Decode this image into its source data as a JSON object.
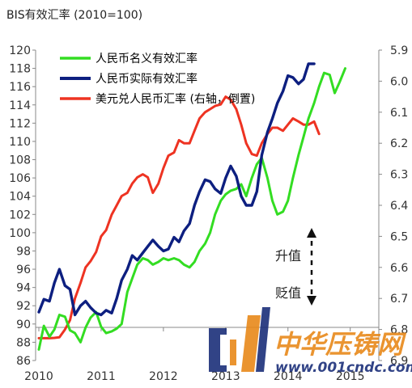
{
  "chart_data": {
    "type": "line",
    "title": "BIS有效汇率 (2010=100)",
    "x_ticks": [
      "2010",
      "2011",
      "2012",
      "2013",
      "2014",
      "2015"
    ],
    "y_left": {
      "min": 86,
      "max": 120,
      "ticks": [
        86,
        88,
        90,
        92,
        94,
        96,
        98,
        100,
        102,
        104,
        106,
        108,
        110,
        112,
        114,
        116,
        118,
        120
      ]
    },
    "y_right": {
      "min": 5.9,
      "max": 6.9,
      "inverted": true,
      "ticks": [
        "5.9",
        "6.0",
        "6.1",
        "6.2",
        "6.3",
        "6.4",
        "6.5",
        "6.6",
        "6.7",
        "6.8",
        "6.9"
      ]
    },
    "legend_placement": "top-left",
    "series": [
      {
        "name": "人民币名义有效汇率",
        "axis": "left",
        "color": "#33dd22",
        "points": [
          [
            2010.0,
            87.2
          ],
          [
            2010.08,
            89.8
          ],
          [
            2010.17,
            88.6
          ],
          [
            2010.25,
            89.4
          ],
          [
            2010.33,
            91.0
          ],
          [
            2010.42,
            90.8
          ],
          [
            2010.5,
            89.3
          ],
          [
            2010.58,
            89.0
          ],
          [
            2010.67,
            88.0
          ],
          [
            2010.75,
            89.6
          ],
          [
            2010.83,
            90.7
          ],
          [
            2010.92,
            91.3
          ],
          [
            2011.0,
            89.7
          ],
          [
            2011.08,
            89.0
          ],
          [
            2011.17,
            89.2
          ],
          [
            2011.25,
            89.5
          ],
          [
            2011.33,
            90.0
          ],
          [
            2011.42,
            93.5
          ],
          [
            2011.5,
            95.0
          ],
          [
            2011.58,
            96.5
          ],
          [
            2011.67,
            97.2
          ],
          [
            2011.75,
            97.0
          ],
          [
            2011.83,
            96.5
          ],
          [
            2011.92,
            96.8
          ],
          [
            2012.0,
            97.2
          ],
          [
            2012.08,
            97.0
          ],
          [
            2012.17,
            97.2
          ],
          [
            2012.25,
            97.0
          ],
          [
            2012.33,
            96.5
          ],
          [
            2012.42,
            96.2
          ],
          [
            2012.5,
            96.8
          ],
          [
            2012.58,
            98.0
          ],
          [
            2012.67,
            98.8
          ],
          [
            2012.75,
            100.0
          ],
          [
            2012.83,
            102.0
          ],
          [
            2012.92,
            103.5
          ],
          [
            2013.0,
            104.2
          ],
          [
            2013.08,
            104.6
          ],
          [
            2013.17,
            104.8
          ],
          [
            2013.25,
            105.3
          ],
          [
            2013.33,
            104.0
          ],
          [
            2013.42,
            106.0
          ],
          [
            2013.5,
            107.5
          ],
          [
            2013.58,
            108.2
          ],
          [
            2013.67,
            106.0
          ],
          [
            2013.75,
            103.5
          ],
          [
            2013.83,
            102.0
          ],
          [
            2013.92,
            102.3
          ],
          [
            2014.0,
            103.5
          ],
          [
            2014.08,
            106.0
          ],
          [
            2014.17,
            108.5
          ],
          [
            2014.25,
            110.5
          ],
          [
            2014.33,
            112.5
          ],
          [
            2014.42,
            114.2
          ],
          [
            2014.5,
            116.0
          ],
          [
            2014.58,
            117.5
          ],
          [
            2014.67,
            117.3
          ],
          [
            2014.75,
            115.3
          ],
          [
            2014.83,
            116.5
          ],
          [
            2014.92,
            118.0
          ]
        ]
      },
      {
        "name": "人民币实际有效汇率",
        "axis": "left",
        "color": "#0d1f80",
        "points": [
          [
            2010.0,
            91.3
          ],
          [
            2010.08,
            92.7
          ],
          [
            2010.17,
            92.5
          ],
          [
            2010.25,
            94.5
          ],
          [
            2010.33,
            96.0
          ],
          [
            2010.42,
            94.2
          ],
          [
            2010.5,
            93.8
          ],
          [
            2010.58,
            91.0
          ],
          [
            2010.67,
            92.0
          ],
          [
            2010.75,
            92.5
          ],
          [
            2010.83,
            91.8
          ],
          [
            2010.92,
            91.2
          ],
          [
            2011.0,
            91.0
          ],
          [
            2011.08,
            91.5
          ],
          [
            2011.17,
            91.2
          ],
          [
            2011.25,
            92.8
          ],
          [
            2011.33,
            94.8
          ],
          [
            2011.42,
            96.0
          ],
          [
            2011.5,
            97.5
          ],
          [
            2011.58,
            97.0
          ],
          [
            2011.67,
            97.8
          ],
          [
            2011.75,
            98.5
          ],
          [
            2011.83,
            99.2
          ],
          [
            2011.92,
            98.5
          ],
          [
            2012.0,
            98.0
          ],
          [
            2012.08,
            98.2
          ],
          [
            2012.17,
            99.5
          ],
          [
            2012.25,
            99.0
          ],
          [
            2012.33,
            100.2
          ],
          [
            2012.42,
            101.0
          ],
          [
            2012.5,
            103.0
          ],
          [
            2012.58,
            104.5
          ],
          [
            2012.67,
            105.8
          ],
          [
            2012.75,
            105.6
          ],
          [
            2012.83,
            104.8
          ],
          [
            2012.92,
            104.3
          ],
          [
            2013.0,
            106.0
          ],
          [
            2013.08,
            107.3
          ],
          [
            2013.17,
            106.2
          ],
          [
            2013.25,
            104.0
          ],
          [
            2013.33,
            103.0
          ],
          [
            2013.42,
            103.0
          ],
          [
            2013.5,
            104.5
          ],
          [
            2013.58,
            108.5
          ],
          [
            2013.67,
            111.0
          ],
          [
            2013.75,
            112.5
          ],
          [
            2013.83,
            114.2
          ],
          [
            2013.92,
            115.5
          ],
          [
            2014.0,
            117.2
          ],
          [
            2014.08,
            117.0
          ],
          [
            2014.17,
            116.3
          ],
          [
            2014.25,
            116.8
          ],
          [
            2014.33,
            118.5
          ],
          [
            2014.42,
            118.5
          ]
        ]
      },
      {
        "name": "美元兑人民币汇率 (右轴，倒置)",
        "axis": "right",
        "color": "#ee3322",
        "points": [
          [
            2010.0,
            6.828
          ],
          [
            2010.08,
            6.828
          ],
          [
            2010.17,
            6.828
          ],
          [
            2010.25,
            6.827
          ],
          [
            2010.33,
            6.825
          ],
          [
            2010.42,
            6.8
          ],
          [
            2010.5,
            6.77
          ],
          [
            2010.58,
            6.7
          ],
          [
            2010.67,
            6.65
          ],
          [
            2010.75,
            6.6
          ],
          [
            2010.83,
            6.58
          ],
          [
            2010.92,
            6.55
          ],
          [
            2011.0,
            6.5
          ],
          [
            2011.08,
            6.48
          ],
          [
            2011.17,
            6.43
          ],
          [
            2011.25,
            6.4
          ],
          [
            2011.33,
            6.37
          ],
          [
            2011.42,
            6.36
          ],
          [
            2011.5,
            6.33
          ],
          [
            2011.58,
            6.31
          ],
          [
            2011.67,
            6.3
          ],
          [
            2011.75,
            6.31
          ],
          [
            2011.83,
            6.36
          ],
          [
            2011.92,
            6.33
          ],
          [
            2012.0,
            6.28
          ],
          [
            2012.08,
            6.24
          ],
          [
            2012.17,
            6.23
          ],
          [
            2012.25,
            6.19
          ],
          [
            2012.33,
            6.2
          ],
          [
            2012.42,
            6.2
          ],
          [
            2012.5,
            6.16
          ],
          [
            2012.58,
            6.12
          ],
          [
            2012.67,
            6.1
          ],
          [
            2012.75,
            6.09
          ],
          [
            2012.83,
            6.08
          ],
          [
            2012.92,
            6.075
          ],
          [
            2013.0,
            6.05
          ],
          [
            2013.08,
            6.06
          ],
          [
            2013.17,
            6.09
          ],
          [
            2013.25,
            6.14
          ],
          [
            2013.33,
            6.2
          ],
          [
            2013.42,
            6.235
          ],
          [
            2013.5,
            6.24
          ],
          [
            2013.58,
            6.2
          ],
          [
            2013.67,
            6.17
          ],
          [
            2013.75,
            6.15
          ],
          [
            2013.83,
            6.15
          ],
          [
            2013.92,
            6.16
          ],
          [
            2014.0,
            6.14
          ],
          [
            2014.08,
            6.12
          ],
          [
            2014.17,
            6.13
          ],
          [
            2014.25,
            6.14
          ],
          [
            2014.33,
            6.14
          ],
          [
            2014.42,
            6.13
          ],
          [
            2014.5,
            6.17
          ]
        ]
      }
    ],
    "annotations": [
      "升值",
      "贬值"
    ]
  },
  "legend": [
    {
      "label": "人民币名义有效汇率",
      "color": "#33dd22"
    },
    {
      "label": "人民币实际有效汇率",
      "color": "#0d1f80"
    },
    {
      "label": "美元兑人民币汇率 (右轴，倒置)",
      "color": "#ee3322"
    }
  ],
  "watermark": {
    "brand": "中华压铸网",
    "url": "www.001cndc.com"
  }
}
